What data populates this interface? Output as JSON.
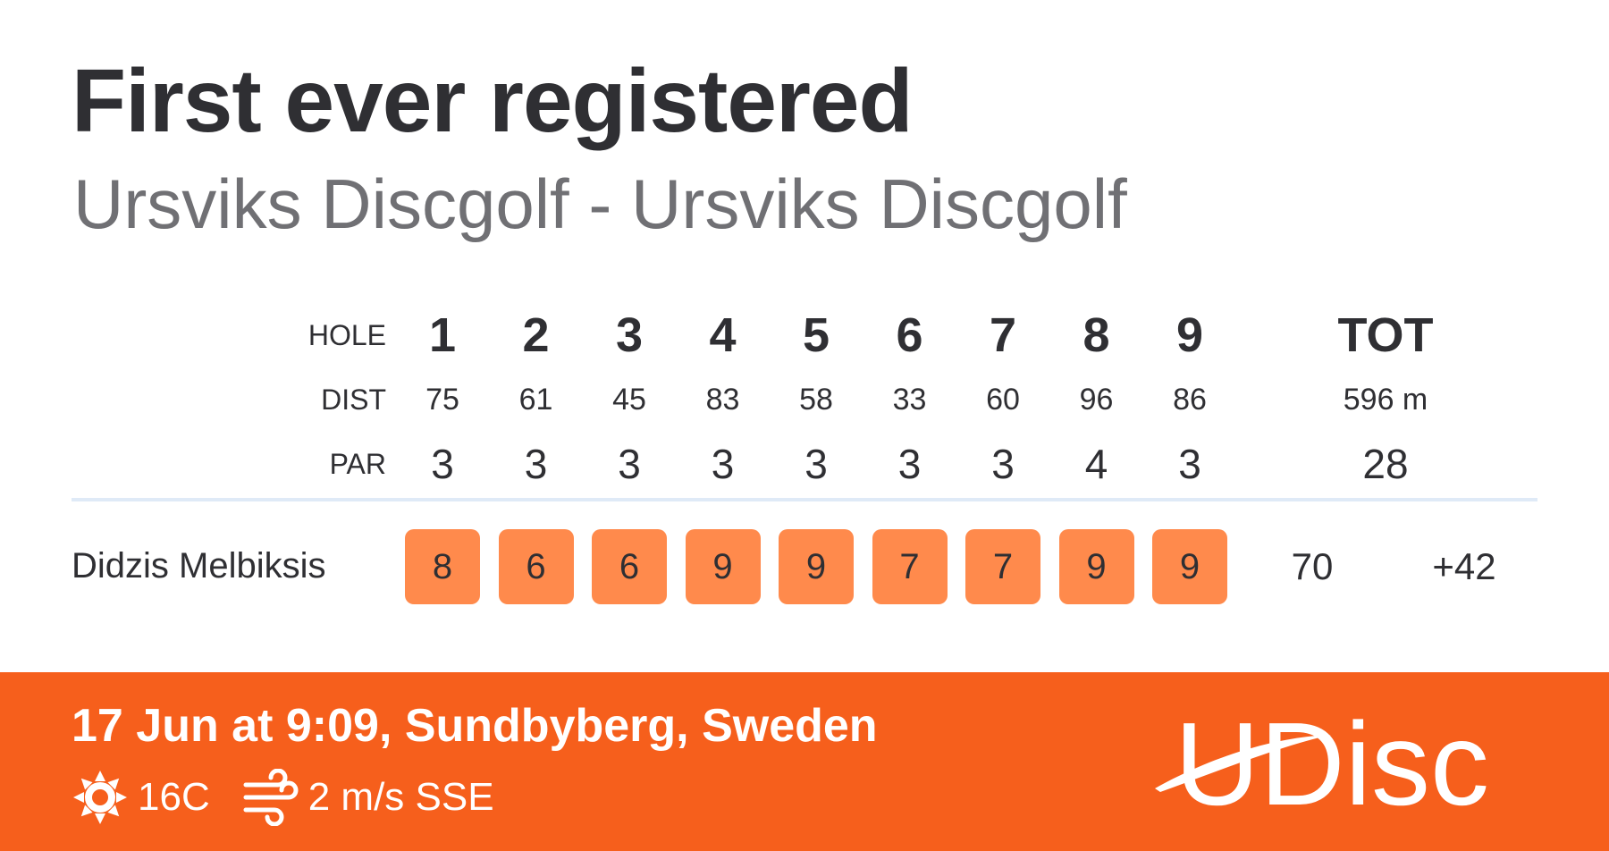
{
  "header": {
    "title": "First ever registered",
    "subtitle": "Ursviks Discgolf - Ursviks Discgolf"
  },
  "scorecard": {
    "hole_label": "HOLE",
    "dist_label": "DIST",
    "par_label": "PAR",
    "holes": [
      "1",
      "2",
      "3",
      "4",
      "5",
      "6",
      "7",
      "8",
      "9"
    ],
    "distances": [
      "75",
      "61",
      "45",
      "83",
      "58",
      "33",
      "60",
      "96",
      "86"
    ],
    "pars": [
      "3",
      "3",
      "3",
      "3",
      "3",
      "3",
      "3",
      "4",
      "3"
    ],
    "total_label": "TOT",
    "total_distance": "596 m",
    "total_par": "28"
  },
  "player": {
    "name": "Didzis Melbiksis",
    "scores": [
      "8",
      "6",
      "6",
      "9",
      "9",
      "7",
      "7",
      "9",
      "9"
    ],
    "total": "70",
    "relative": "+42"
  },
  "footer": {
    "date_location": "17 Jun at 9:09, Sundbyberg, Sweden",
    "temperature": "16C",
    "wind": "2 m/s SSE",
    "logo_text": "UDisc",
    "background_color": "#f65f1c"
  },
  "colors": {
    "score_box": "#ff8a4c",
    "divider": "#dfeaf7"
  },
  "icons": {
    "weather": "sun-icon",
    "wind": "wind-icon"
  }
}
